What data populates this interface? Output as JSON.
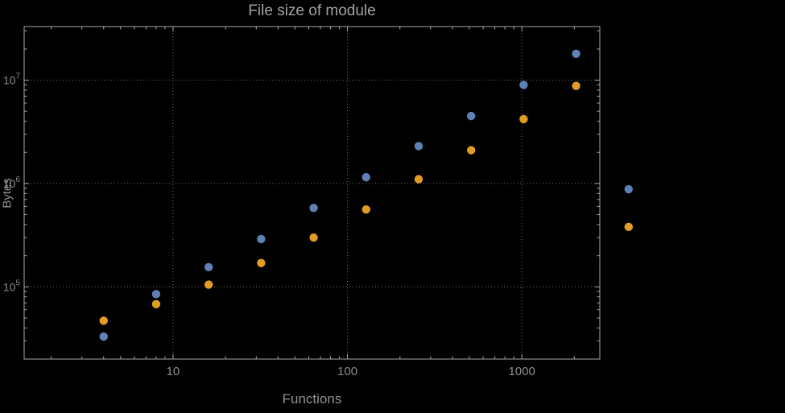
{
  "colors": {
    "background": "#000000",
    "frame": "#a8a8a8",
    "grid": "#6f6f6f",
    "title": "#a3a3a3",
    "axis_labels": "#919191",
    "tick_labels": "#8c8c8c",
    "series_1": "#5e81b5",
    "series_2": "#e19c24"
  },
  "chart_data": {
    "type": "scatter",
    "title": "File size of module",
    "xlabel": "Functions",
    "ylabel": "Bytes",
    "x_scale": "log",
    "y_scale": "log",
    "xlim": [
      1.4,
      2800
    ],
    "ylim": [
      20000,
      33000000
    ],
    "x_ticks": [
      10,
      100,
      1000
    ],
    "y_ticks": [
      100000,
      1000000,
      10000000
    ],
    "grid": "dotted lines at major ticks",
    "legend": "none",
    "marker": "filled circle",
    "series": [
      {
        "name": "series-1-blue",
        "color": "#5e81b5",
        "points": [
          [
            4,
            33000
          ],
          [
            8,
            85000
          ],
          [
            16,
            155000
          ],
          [
            32,
            290000
          ],
          [
            64,
            580000
          ],
          [
            128,
            1150000
          ],
          [
            256,
            2300000
          ],
          [
            512,
            4500000
          ],
          [
            1024,
            9000000
          ],
          [
            2048,
            18000000
          ],
          [
            4096,
            880000
          ]
        ]
      },
      {
        "name": "series-2-orange",
        "color": "#e19c24",
        "points": [
          [
            4,
            47000
          ],
          [
            8,
            68000
          ],
          [
            16,
            105000
          ],
          [
            32,
            170000
          ],
          [
            64,
            300000
          ],
          [
            128,
            560000
          ],
          [
            256,
            1100000
          ],
          [
            512,
            2100000
          ],
          [
            1024,
            4200000
          ],
          [
            2048,
            8800000
          ],
          [
            4096,
            380000
          ]
        ]
      }
    ]
  }
}
